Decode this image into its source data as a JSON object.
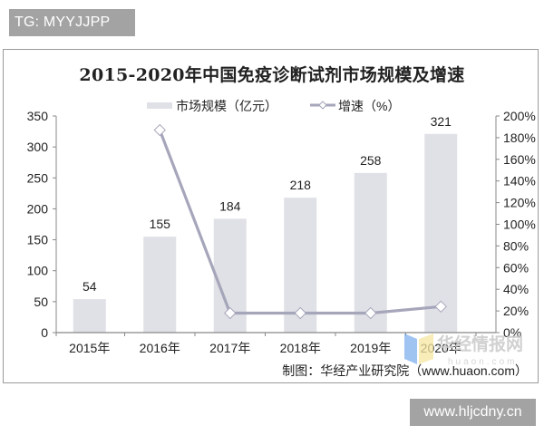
{
  "watermarks": {
    "top_tag": "TG: MYYJJPP",
    "bottom_tag": "www.hljcdny.cn",
    "logo_text": "华经情报网",
    "logo_sub": "huaon.com"
  },
  "source": "制图：华经产业研究院（www.huaon.com）",
  "colors": {
    "bar": "#e0e1e6",
    "line": "#a6a6bb",
    "axis": "#888888",
    "text": "#222222",
    "tag_bg": "#a3a3a3"
  },
  "chart_data": {
    "type": "bar+line",
    "title": "2015-2020年中国免疫诊断试剂市场规模及增速",
    "categories": [
      "2015年",
      "2016年",
      "2017年",
      "2018年",
      "2019年",
      "2020年"
    ],
    "series": [
      {
        "name": "市场规模（亿元）",
        "type": "bar",
        "axis": "left",
        "values": [
          54,
          155,
          184,
          218,
          258,
          321
        ],
        "labels": [
          "54",
          "155",
          "184",
          "218",
          "258",
          "321"
        ]
      },
      {
        "name": "增速（%）",
        "type": "line",
        "axis": "right",
        "marker": "diamond",
        "values": [
          null,
          187,
          18,
          18,
          18,
          24
        ]
      }
    ],
    "left_axis": {
      "min": 0,
      "max": 350,
      "ticks": [
        "0",
        "50",
        "100",
        "150",
        "200",
        "250",
        "300",
        "350"
      ]
    },
    "right_axis": {
      "min": 0,
      "max": 200,
      "ticks": [
        "0%",
        "20%",
        "40%",
        "60%",
        "80%",
        "100%",
        "120%",
        "140%",
        "160%",
        "180%",
        "200%"
      ]
    },
    "xlabel": "",
    "ylabel": "",
    "legend_position": "top",
    "grid": false
  }
}
